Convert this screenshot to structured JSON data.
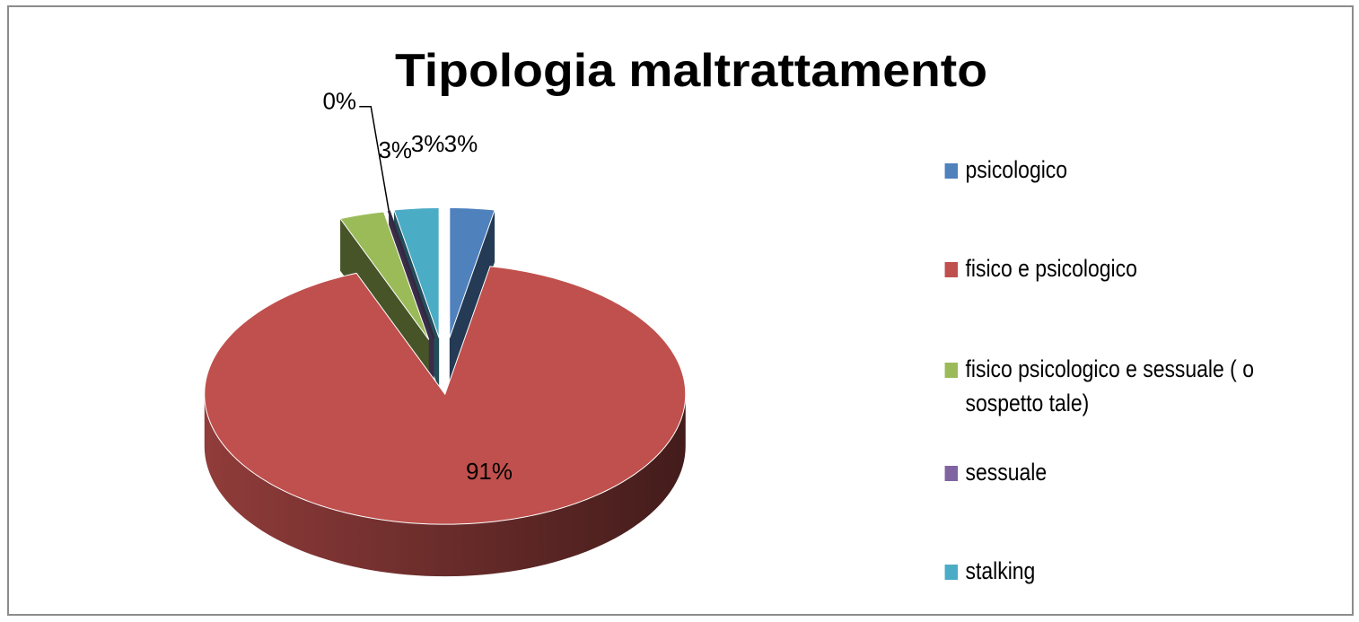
{
  "chart_data": {
    "type": "pie",
    "title": "Tipologia maltrattamento",
    "categories": [
      "psicologico",
      "fisico e psicologico",
      "fisico psicologico e sessuale ( o sospetto tale)",
      "sessuale",
      "stalking"
    ],
    "values": [
      3,
      91,
      3,
      0,
      3
    ],
    "value_labels": [
      "3%",
      "91%",
      "3%",
      "0%",
      "3%"
    ],
    "colors": [
      "#4f81bd",
      "#c0504d",
      "#9bbb59",
      "#8064a2",
      "#4bacc6"
    ],
    "legend": "right"
  }
}
